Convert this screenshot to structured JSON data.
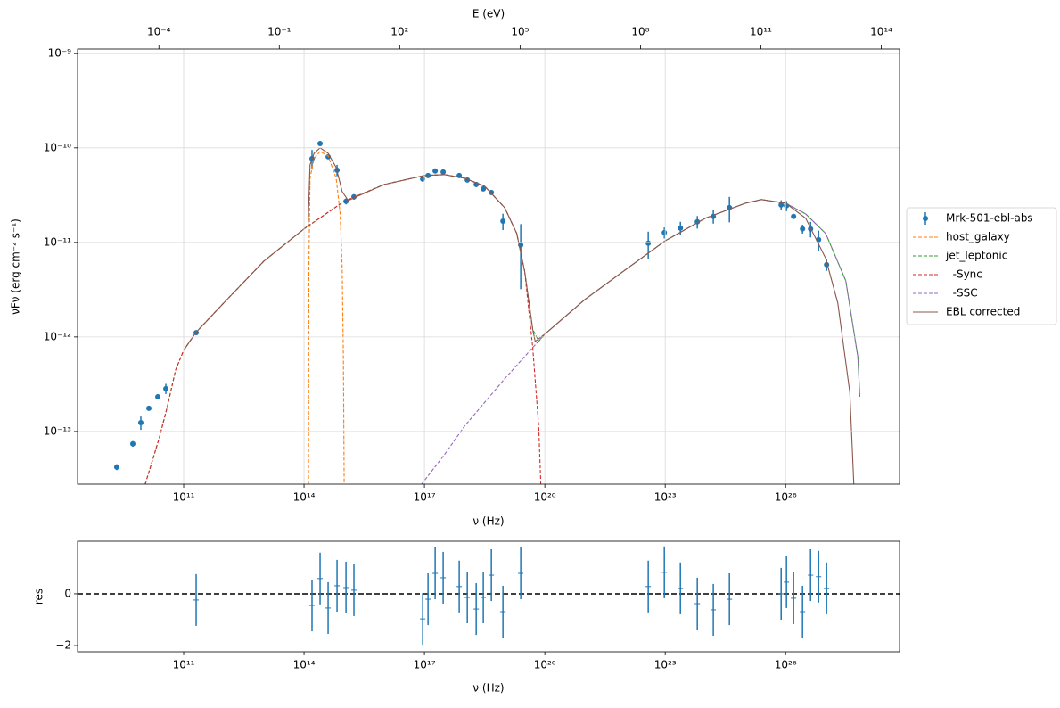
{
  "chart_data": [
    {
      "type": "line",
      "x2label": "E (eV)",
      "xlabel": "ν  (Hz)",
      "ylabel": "νFν  (erg cm⁻²  s⁻¹)",
      "log_x": true,
      "log_y": true,
      "grid": true,
      "legend": "right",
      "xlim": [
        227000000.0,
        6.9e+28
      ],
      "x2lim": [
        9.4e-07,
        285000000000000.0
      ],
      "ylim": [
        2.77e-14,
        1.11e-09
      ],
      "xticks": [
        {
          "value": 100000000000.0,
          "label": "10¹¹"
        },
        {
          "value": 100000000000000.0,
          "label": "10¹⁴"
        },
        {
          "value": 1e+17,
          "label": "10¹⁷"
        },
        {
          "value": 1e+20,
          "label": "10²⁰"
        },
        {
          "value": 1e+23,
          "label": "10²³"
        },
        {
          "value": 1e+26,
          "label": "10²⁶"
        }
      ],
      "x2ticks": [
        {
          "value": 0.0001,
          "label": "10⁻⁴"
        },
        {
          "value": 0.1,
          "label": "10⁻¹"
        },
        {
          "value": 100.0,
          "label": "10²"
        },
        {
          "value": 100000.0,
          "label": "10⁵"
        },
        {
          "value": 100000000.0,
          "label": "10⁸"
        },
        {
          "value": 100000000000.0,
          "label": "10¹¹"
        },
        {
          "value": 100000000000000.0,
          "label": "10¹⁴"
        }
      ],
      "yticks": [
        {
          "value": 1e-13,
          "label": "10⁻¹³"
        },
        {
          "value": 1e-12,
          "label": "10⁻¹²"
        },
        {
          "value": 1e-11,
          "label": "10⁻¹¹"
        },
        {
          "value": 1e-10,
          "label": "10⁻¹⁰"
        },
        {
          "value": 1e-09,
          "label": "10⁻⁹"
        }
      ],
      "series": [
        {
          "name": "Mrk-501-ebl-abs",
          "color": "#1f77b4",
          "kind": "errorbar",
          "marker": "o",
          "x": [
            2150000000.0,
            5410000000.0,
            8570000000.0,
            13600000000.0,
            22700000000.0,
            36000000000.0,
            205000000000.0,
            158000000000000.0,
            251000000000000.0,
            398000000000000.0,
            664000000000000.0,
            1110000000000000.0,
            1750000000000000.0,
            9.04e+16,
            1.23e+17,
            1.85e+17,
            2.93e+17,
            7.36e+17,
            1.17e+18,
            1.95e+18,
            2.93e+18,
            4.65e+18,
            9.04e+18,
            2.51e+19,
            3.78e+22,
            9.51e+22,
            2.39e+23,
            6.31e+23,
            1.58e+24,
            3.98e+24,
            7.74e+25,
            1.05e+26,
            1.58e+26,
            2.64e+26,
            4.19e+26,
            6.64e+26,
            1.05e+27
          ],
          "values": [
            4.2e-14,
            7.4e-14,
            1.24e-13,
            1.76e-13,
            2.33e-13,
            2.84e-13,
            1.11e-12,
            7.7e-11,
            1.11e-10,
            8.05e-11,
            5.81e-11,
            2.72e-11,
            3.03e-11,
            4.68e-11,
            5.1e-11,
            5.69e-11,
            5.56e-11,
            5.1e-11,
            4.57e-11,
            4.1e-11,
            3.68e-11,
            3.37e-11,
            1.68e-11,
            9.4e-12,
            9.8e-12,
            1.27e-11,
            1.42e-11,
            1.65e-11,
            1.88e-11,
            2.33e-11,
            2.49e-11,
            2.44e-11,
            1.88e-11,
            1.39e-11,
            1.39e-11,
            1.07e-11,
            5.8e-12
          ],
          "yerr": [
            3e-15,
            5e-15,
            2e-14,
            1e-14,
            1.5e-14,
            3.5e-14,
            6e-14,
            1.8e-11,
            6e-12,
            4e-12,
            8e-12,
            2e-12,
            2e-12,
            3e-12,
            3e-12,
            3e-12,
            3e-12,
            3e-12,
            2.5e-12,
            2.5e-12,
            2e-12,
            2e-12,
            3.3e-12,
            6.2e-12,
            3.2e-12,
            1.7e-12,
            2.3e-12,
            2.5e-12,
            3e-12,
            7e-12,
            3e-12,
            3e-12,
            1e-12,
            1.5e-12,
            2.6e-12,
            2.6e-12,
            8e-13
          ]
        },
        {
          "name": "host_galaxy",
          "color": "#ff7f0e",
          "kind": "line",
          "dash": "dashed",
          "x": [
            129000000000000.0,
            132000000000000.0,
            141000000000000.0,
            178000000000000.0,
            251000000000000.0,
            398000000000000.0,
            631000000000000.0,
            794000000000000.0,
            891000000000000.0,
            955000000000000.0,
            1000000000000000.0
          ],
          "values": [
            2.77e-14,
            5.44e-12,
            4.78e-11,
            7.7e-11,
            9.17e-11,
            8.22e-11,
            4.78e-11,
            2e-11,
            5.44e-12,
            6.19e-13,
            2.77e-14
          ]
        },
        {
          "name": "jet_leptonic",
          "color": "#2ca02c",
          "kind": "line",
          "dash": "dashed",
          "x": [
            11000000000.0,
            15800000000.0,
            25100000000.0,
            39800000000.0,
            63100000000.0,
            100000000000.0,
            200000000000.0,
            1000000000000.0,
            10000000000000.0,
            100000000000000.0,
            1000000000000000.0,
            1e+16,
            1e+17,
            3.16e+17,
            1e+18,
            3.16e+18,
            1e+19,
            2e+19,
            3.16e+19,
            5e+19,
            7.08e+19,
            1e+20,
            1e+21,
            1e+22,
            1e+23,
            1e+24,
            1e+25,
            2.51e+25,
            1e+26,
            3.16e+26,
            1e+27,
            3.16e+27,
            6.31e+27,
            7.08e+27
          ],
          "values": [
            2.77e-14,
            4.57e-14,
            8.77e-14,
            1.88e-13,
            4.48e-13,
            7.21e-13,
            1.11e-12,
            2.29e-12,
            6.34e-12,
            1.39e-11,
            2.72e-11,
            4.1e-11,
            5.1e-11,
            5.21e-11,
            4.78e-11,
            3.93e-11,
            2.33e-11,
            1.24e-11,
            4.89e-12,
            1.2e-12,
            9e-13,
            1.07e-12,
            2.49e-12,
            5.1e-12,
            1.04e-11,
            1.8e-11,
            2.6e-11,
            2.84e-11,
            2.6e-11,
            2e-11,
            1.24e-11,
            3.93e-12,
            6.19e-13,
            2.33e-13
          ]
        },
        {
          "name": "  -Sync",
          "color": "#d62728",
          "kind": "line",
          "dash": "dashed",
          "x": [
            11000000000.0,
            15800000000.0,
            25100000000.0,
            39800000000.0,
            63100000000.0,
            100000000000.0,
            200000000000.0,
            1000000000000.0,
            10000000000000.0,
            100000000000000.0,
            1000000000000000.0,
            1e+16,
            1e+17,
            3.16e+17,
            1e+18,
            3.16e+18,
            1e+19,
            2e+19,
            3.16e+19,
            5e+19,
            7.08e+19,
            7.94e+19
          ],
          "values": [
            2.77e-14,
            4.57e-14,
            8.77e-14,
            1.88e-13,
            4.48e-13,
            7.21e-13,
            1.11e-12,
            2.29e-12,
            6.34e-12,
            1.39e-11,
            2.72e-11,
            4.1e-11,
            5.1e-11,
            5.21e-11,
            4.78e-11,
            3.93e-11,
            2.33e-11,
            1.24e-11,
            4.89e-12,
            7.71e-13,
            1.09e-13,
            2.77e-14
          ]
        },
        {
          "name": "  -SSC",
          "color": "#9467bd",
          "kind": "line",
          "dash": "dashed",
          "x": [
            8.51e+16,
            3.16e+17,
            1e+18,
            1e+19,
            1e+20,
            1e+21,
            1e+22,
            1e+23,
            1e+24,
            1e+25,
            2.51e+25,
            1e+26,
            3.16e+26,
            1e+27,
            3.16e+27,
            6.31e+27,
            7.08e+27
          ],
          "values": [
            2.77e-14,
            5.69e-14,
            1.14e-13,
            3.61e-13,
            1.07e-12,
            2.49e-12,
            5.1e-12,
            1.04e-11,
            1.8e-11,
            2.6e-11,
            2.84e-11,
            2.6e-11,
            2e-11,
            1.24e-11,
            3.93e-12,
            6.19e-13,
            2.33e-13
          ]
        },
        {
          "name": "EBL corrected",
          "color": "#8c564b",
          "kind": "line",
          "dash": "solid",
          "x": [
            100000000000.0,
            200000000000.0,
            1000000000000.0,
            10000000000000.0,
            100000000000000.0,
            126000000000000.0,
            141000000000000.0,
            178000000000000.0,
            251000000000000.0,
            398000000000000.0,
            631000000000000.0,
            891000000000000.0,
            1260000000000000.0,
            2000000000000000.0,
            1e+16,
            1e+17,
            3.16e+17,
            1e+18,
            3.16e+18,
            1e+19,
            2e+19,
            3.16e+19,
            5e+19,
            5.75e+19,
            1e+20,
            1e+21,
            1e+22,
            1e+23,
            1e+24,
            1e+25,
            2.51e+25,
            1e+26,
            3.16e+26,
            1e+27,
            2e+27,
            3.98e+27,
            5.01e+27
          ],
          "values": [
            7.21e-13,
            1.11e-12,
            2.29e-12,
            6.34e-12,
            1.39e-11,
            1.51e-11,
            6.62e-11,
            8.77e-11,
            1e-10,
            8.77e-11,
            6.2e-11,
            3.45e-11,
            2.77e-11,
            3.03e-11,
            4.1e-11,
            5.1e-11,
            5.21e-11,
            4.78e-11,
            3.93e-11,
            2.33e-11,
            1.24e-11,
            4.89e-12,
            1.2e-12,
            8.97e-13,
            1.07e-12,
            2.49e-12,
            5.1e-12,
            1.04e-11,
            1.8e-11,
            2.6e-11,
            2.84e-11,
            2.6e-11,
            1.8e-11,
            6.77e-12,
            2.28e-12,
            2.6e-13,
            2.77e-14
          ]
        }
      ]
    },
    {
      "type": "errorbar",
      "xlabel": "ν  (Hz)",
      "ylabel": "res",
      "log_x": true,
      "log_y": false,
      "grid": false,
      "xlim": [
        227000000.0,
        6.9e+28
      ],
      "ylim": [
        -2.24,
        2.03
      ],
      "xticks": [
        {
          "value": 100000000000.0,
          "label": "10¹¹"
        },
        {
          "value": 100000000000000.0,
          "label": "10¹⁴"
        },
        {
          "value": 1e+17,
          "label": "10¹⁷"
        },
        {
          "value": 1e+20,
          "label": "10²⁰"
        },
        {
          "value": 1e+23,
          "label": "10²³"
        },
        {
          "value": 1e+26,
          "label": "10²⁶"
        }
      ],
      "yticks": [
        {
          "value": -2,
          "label": "−2"
        },
        0
      ],
      "hline": 0,
      "hline_color": "#000000",
      "series": [
        {
          "color": "#1f77b4",
          "kind": "errorbar",
          "marker": "+",
          "x": [
            2150000000.0,
            5410000000.0,
            8570000000.0,
            13600000000.0,
            22700000000.0,
            36000000000.0,
            205000000000.0,
            158000000000000.0,
            251000000000000.0,
            398000000000000.0,
            664000000000000.0,
            1110000000000000.0,
            1750000000000000.0,
            9.04e+16,
            1.23e+17,
            1.85e+17,
            2.93e+17,
            7.36e+17,
            1.17e+18,
            1.95e+18,
            2.93e+18,
            4.65e+18,
            9.04e+18,
            2.51e+19,
            3.78e+22,
            9.51e+22,
            2.39e+23,
            6.31e+23,
            1.58e+24,
            3.98e+24,
            7.74e+25,
            1.05e+26,
            1.58e+26,
            2.64e+26,
            4.19e+26,
            6.64e+26,
            1.05e+27
          ],
          "values": [
            null,
            null,
            null,
            null,
            null,
            null,
            -0.24,
            -0.45,
            0.59,
            -0.55,
            0.31,
            0.24,
            0.14,
            -0.97,
            -0.21,
            0.79,
            0.62,
            0.28,
            -0.14,
            -0.59,
            -0.14,
            0.72,
            -0.69,
            0.79,
            0.28,
            0.83,
            0.21,
            -0.38,
            -0.62,
            -0.21,
            0.0,
            0.45,
            -0.17,
            -0.69,
            0.72,
            0.66,
            0.21
          ],
          "yerr": [
            null,
            null,
            null,
            null,
            null,
            null,
            1,
            1,
            1,
            1,
            1,
            1,
            1,
            1,
            1,
            1,
            1,
            1,
            1,
            1,
            1,
            1,
            1,
            1,
            1,
            1,
            1,
            1,
            1,
            1,
            1,
            1,
            1,
            1,
            1,
            1,
            1
          ]
        }
      ]
    }
  ]
}
